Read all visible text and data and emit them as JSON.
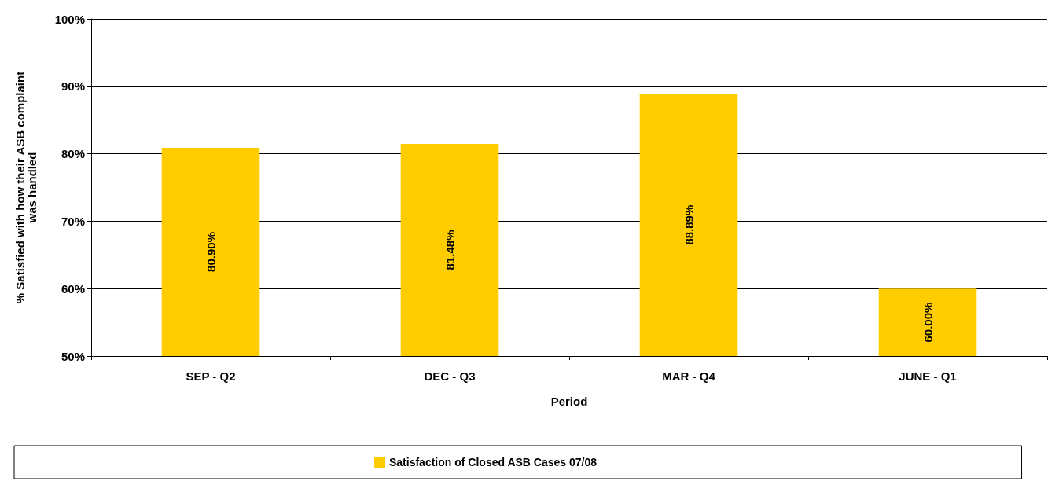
{
  "chart_data": {
    "type": "bar",
    "xlabel": "Period",
    "ylabel": "% Satisfied with how their ASB complaint\nwas handled",
    "categories": [
      "SEP - Q2",
      "DEC - Q3",
      "MAR - Q4",
      "JUNE - Q1"
    ],
    "series": [
      {
        "name": "Satisfaction of Closed ASB Cases 07/08",
        "color": "#ffcc00",
        "values": [
          80.9,
          81.48,
          88.89,
          60.0
        ],
        "value_labels": [
          "80.90%",
          "81.48%",
          "88.89%",
          "60.00%"
        ]
      }
    ],
    "ylim": [
      50,
      100
    ],
    "yticks": [
      {
        "value": 50,
        "label": "50%"
      },
      {
        "value": 60,
        "label": "60%"
      },
      {
        "value": 70,
        "label": "70%"
      },
      {
        "value": 80,
        "label": "80%"
      },
      {
        "value": 90,
        "label": "90%"
      },
      {
        "value": 100,
        "label": "100%"
      }
    ],
    "grid": "y",
    "legend": "bottom"
  }
}
